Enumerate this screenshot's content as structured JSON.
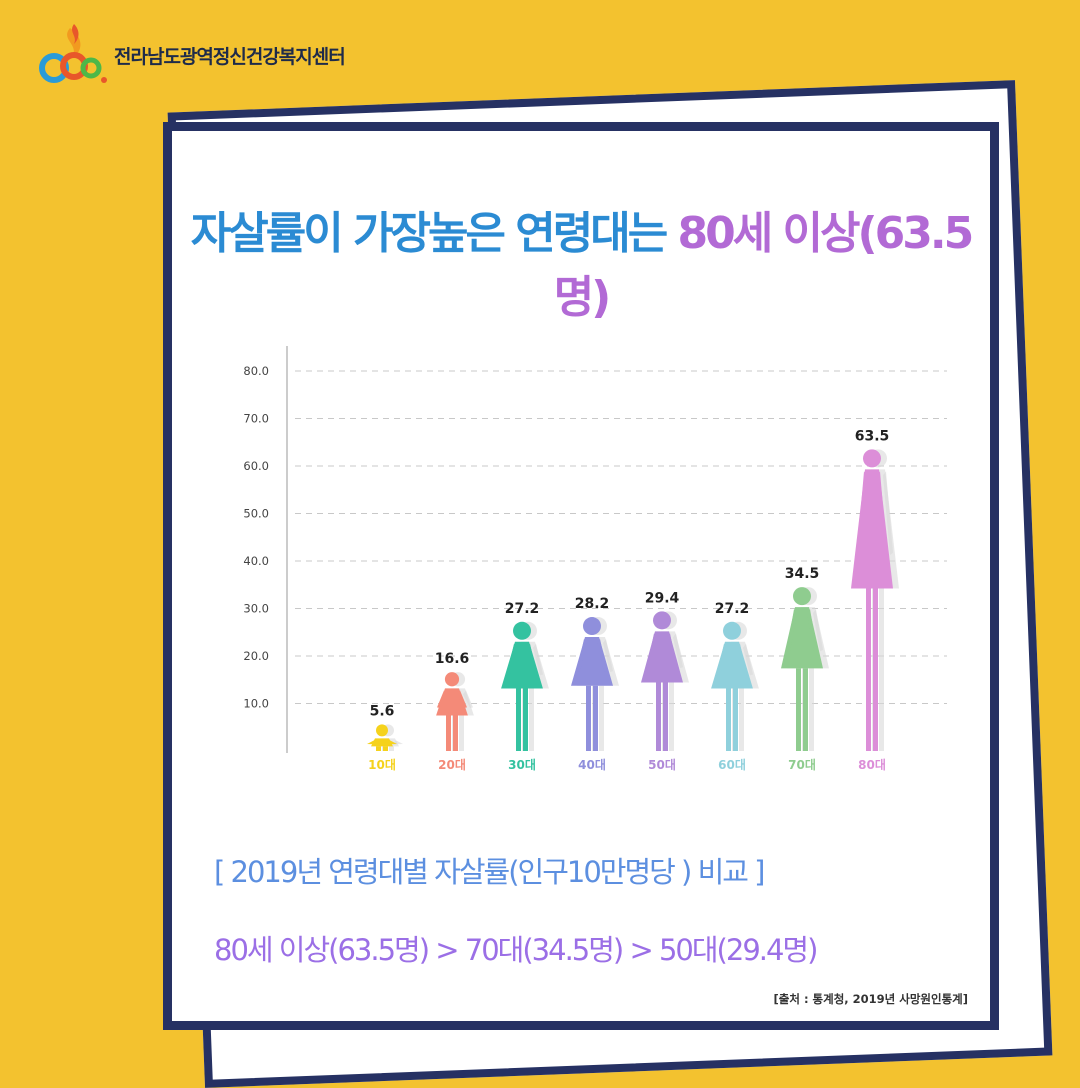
{
  "header": {
    "org_name": "전라남도광역정신건강복지센터",
    "logo_colors": [
      "#e8572a",
      "#f29a1f",
      "#2a9bd8",
      "#4db848"
    ]
  },
  "card": {
    "title_part1": "자살률이 가장높은 연령대는",
    "title_part2": "80세 이상(63.5명)",
    "subtitle": "[ 2019년 연령대별 자살률(인구10만명당 ) 비교 ]",
    "comparison": "80세 이상(63.5명) > 70대(34.5명) > 50대(29.4명)",
    "source": "[출처 : 통계청, 2019년 사망원인통계]"
  },
  "chart_data": {
    "type": "bar",
    "categories": [
      "10대",
      "20대",
      "30대",
      "40대",
      "50대",
      "60대",
      "70대",
      "80대"
    ],
    "values": [
      5.6,
      16.6,
      27.2,
      28.2,
      29.4,
      27.2,
      34.5,
      63.5
    ],
    "colors": [
      "#f5d21c",
      "#f48a78",
      "#34c2a0",
      "#8f8fdc",
      "#b08ad8",
      "#8fd0dc",
      "#8fcc8f",
      "#dc8ed8"
    ],
    "highlight_value_color": "#e52222",
    "yticks": [
      10.0,
      20.0,
      30.0,
      40.0,
      50.0,
      60.0,
      70.0,
      80.0
    ],
    "ylim": [
      0,
      80
    ],
    "grid": true,
    "title": "",
    "xlabel": "",
    "ylabel": ""
  }
}
